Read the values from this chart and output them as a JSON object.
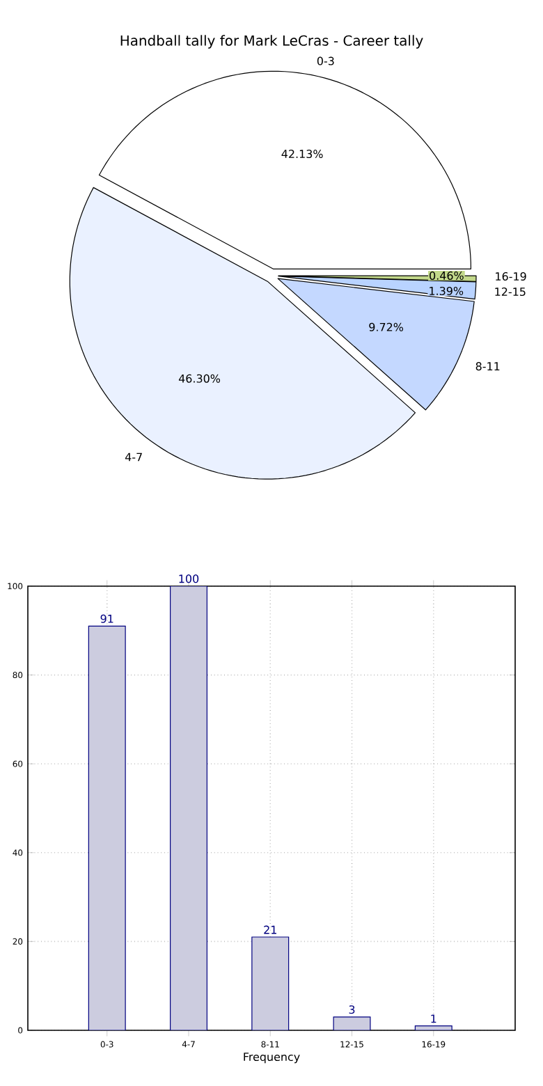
{
  "chart_data": [
    {
      "type": "pie",
      "title": "Handball tally for Mark LeCras - Career tally",
      "categories": [
        "0-3",
        "4-7",
        "8-11",
        "12-15",
        "16-19"
      ],
      "values": [
        42.13,
        46.3,
        9.72,
        1.39,
        0.46
      ],
      "value_labels": [
        "42.13%",
        "46.30%",
        "9.72%",
        "1.39%",
        "0.46%"
      ],
      "colors": [
        "#ffffff",
        "#eaf1ff",
        "#c4d8ff",
        "#b9d3ff",
        "#c2d88a"
      ]
    },
    {
      "type": "bar",
      "xlabel": "Frequency",
      "categories": [
        "0-3",
        "4-7",
        "8-11",
        "12-15",
        "16-19"
      ],
      "values": [
        91,
        100,
        21,
        3,
        1
      ],
      "color": "#ccccdf",
      "ylim": [
        0,
        100
      ],
      "yticks": [
        0,
        20,
        40,
        60,
        80,
        100
      ],
      "grid": true,
      "data_labels": true
    }
  ]
}
